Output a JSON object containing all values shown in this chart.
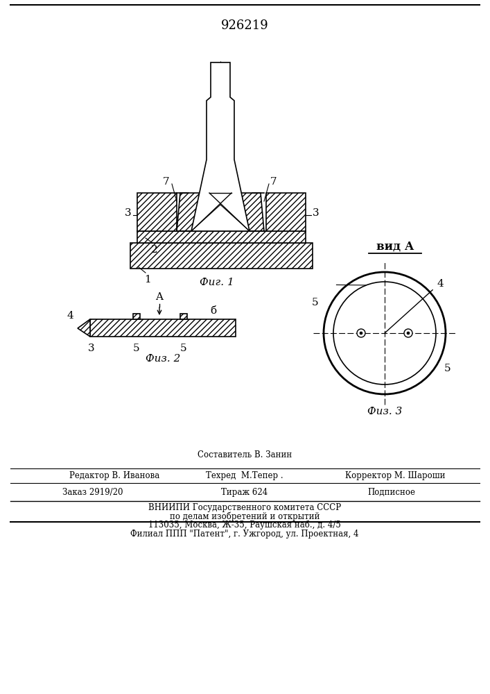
{
  "patent_number": "926219",
  "background_color": "#ffffff",
  "line_color": "#000000",
  "fig1_caption": "Фиг. 1",
  "fig2_caption": "Физ. 2",
  "fig3_caption": "Физ. 3",
  "vid_label": "вид A",
  "footer_sostavitel": "Составитель В. Занин",
  "footer_redaktor": "Редактор В. Иванова",
  "footer_tekhred": "Техред  М.Тепер .",
  "footer_korrektor": "Корректор М. Шароши",
  "footer_zakaz": "Заказ 2919/20",
  "footer_tirazh": "Тираж 624",
  "footer_podpisnoe": "Подписное",
  "footer_vniip1": "ВНИИПИ Государственного комитета СССР",
  "footer_vniip2": "по делам изобретений и открытий",
  "footer_addr": "113035, Москва, Ж-35, Раушская наб., д. 4/5",
  "footer_filial": "Филиал ППП \"Патент\", г. Ужгород, ул. Проектная, 4"
}
